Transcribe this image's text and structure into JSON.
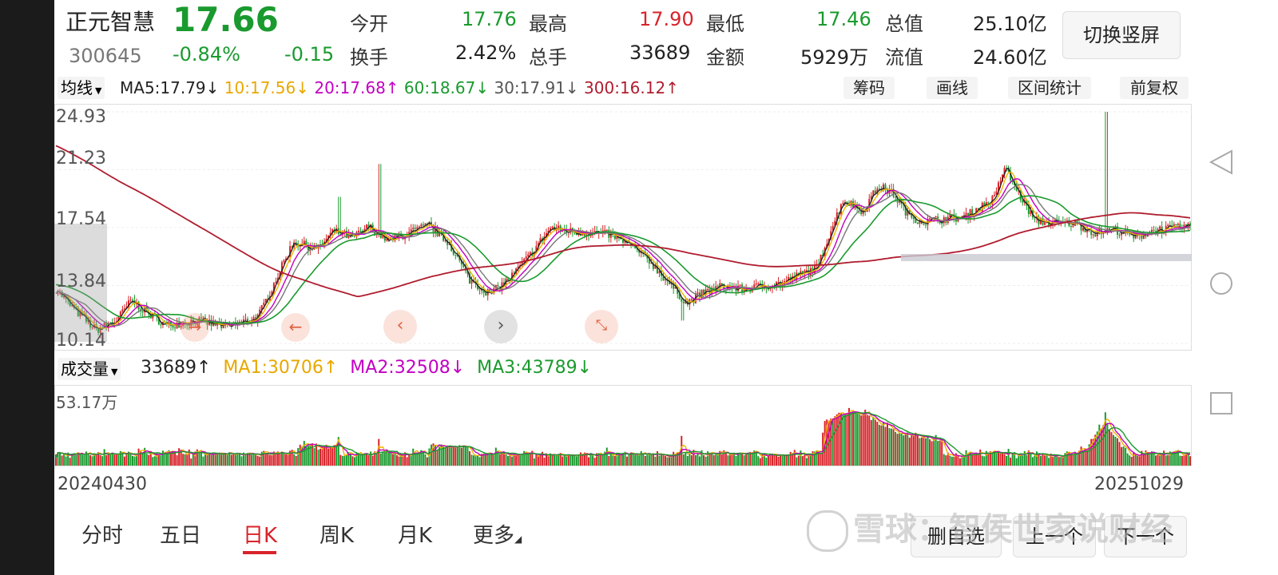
{
  "stock": {
    "name": "正元智慧",
    "code": "300645",
    "price": "17.66",
    "change_pct": "-0.84%",
    "change": "-0.15"
  },
  "quote": {
    "open_label": "今开",
    "open": "17.76",
    "high_label": "最高",
    "high": "17.90",
    "low_label": "最低",
    "low": "17.46",
    "mcap_label": "总值",
    "mcap": "25.10亿",
    "turnover_label": "换手",
    "turnover": "2.42%",
    "vol_label": "总手",
    "vol": "33689",
    "amount_label": "金额",
    "amount": "5929万",
    "float_label": "流值",
    "float": "24.60亿"
  },
  "switch_button": "切换竖屏",
  "toolbar": {
    "ma_selector": "均线",
    "ma5": "MA5:17.79↓",
    "ma10": "10:17.56↓",
    "ma20": "20:17.68↑",
    "ma60": "60:18.67↓",
    "ma30": "30:17.91↓",
    "ma300": "300:16.12↑",
    "chips": "筹码",
    "draw": "画线",
    "range_stats": "区间统计",
    "adjust": "前复权"
  },
  "price_axis": [
    "24.93",
    "21.23",
    "17.54",
    "13.84",
    "10.14"
  ],
  "volume_bar": {
    "selector": "成交量",
    "vol": "33689↑",
    "ma1": "MA1:30706↑",
    "ma2": "MA2:32508↓",
    "ma3": "MA3:43789↓",
    "max": "53.17万"
  },
  "dates": {
    "start": "20240430",
    "end": "20251029"
  },
  "period_tabs": [
    "分时",
    "五日",
    "日K",
    "周K",
    "月K",
    "更多"
  ],
  "active_tab": "日K",
  "bottom_buttons": [
    "删自选",
    "上一个",
    "下一个"
  ],
  "watermark": "雪球：智侯世家说财经",
  "colors": {
    "up": "#d8232a",
    "down": "#1a9a2e",
    "ma5": "#222222",
    "ma10": "#f0b400",
    "ma20": "#c200c2",
    "ma30": "#777777",
    "ma60": "#1a9a2e",
    "ma300": "#b01c2e"
  },
  "chart_data": {
    "type": "candlestick",
    "y_range": [
      10.14,
      24.93
    ],
    "y_ticks": [
      24.93,
      21.23,
      17.54,
      13.84,
      10.14
    ],
    "x_range": [
      "20240430",
      "20251029"
    ],
    "anchors": [
      [
        0,
        13.6
      ],
      [
        20,
        12.2
      ],
      [
        40,
        11.0
      ],
      [
        60,
        11.6
      ],
      [
        75,
        12.9
      ],
      [
        90,
        12.1
      ],
      [
        110,
        11.3
      ],
      [
        140,
        11.6
      ],
      [
        170,
        11.2
      ],
      [
        200,
        11.8
      ],
      [
        215,
        13.8
      ],
      [
        235,
        16.6
      ],
      [
        260,
        16.2
      ],
      [
        275,
        17.3
      ],
      [
        295,
        16.9
      ],
      [
        310,
        17.6
      ],
      [
        330,
        16.7
      ],
      [
        350,
        17.2
      ],
      [
        370,
        17.7
      ],
      [
        390,
        16.5
      ],
      [
        410,
        14.2
      ],
      [
        430,
        13.3
      ],
      [
        450,
        14.3
      ],
      [
        470,
        15.8
      ],
      [
        490,
        17.5
      ],
      [
        510,
        17.3
      ],
      [
        530,
        17.2
      ],
      [
        550,
        17.1
      ],
      [
        570,
        16.4
      ],
      [
        590,
        15.3
      ],
      [
        610,
        13.8
      ],
      [
        625,
        12.7
      ],
      [
        640,
        13.3
      ],
      [
        660,
        13.8
      ],
      [
        680,
        13.6
      ],
      [
        700,
        13.8
      ],
      [
        720,
        14.0
      ],
      [
        740,
        14.6
      ],
      [
        755,
        15.0
      ],
      [
        765,
        16.9
      ],
      [
        780,
        19.3
      ],
      [
        800,
        18.6
      ],
      [
        815,
        20.2
      ],
      [
        830,
        19.7
      ],
      [
        845,
        18.3
      ],
      [
        860,
        17.9
      ],
      [
        880,
        18.1
      ],
      [
        900,
        18.2
      ],
      [
        915,
        18.8
      ],
      [
        930,
        19.4
      ],
      [
        940,
        21.4
      ],
      [
        955,
        19.6
      ],
      [
        970,
        18.0
      ],
      [
        990,
        17.8
      ],
      [
        1010,
        17.8
      ],
      [
        1030,
        17.2
      ],
      [
        1050,
        17.4
      ],
      [
        1070,
        16.9
      ],
      [
        1090,
        17.4
      ],
      [
        1110,
        17.5
      ],
      [
        1124,
        17.66
      ]
    ],
    "spikes": [
      [
        320,
        21.6
      ],
      [
        1040,
        24.93
      ],
      [
        280,
        19.5
      ],
      [
        620,
        11.6
      ]
    ]
  }
}
